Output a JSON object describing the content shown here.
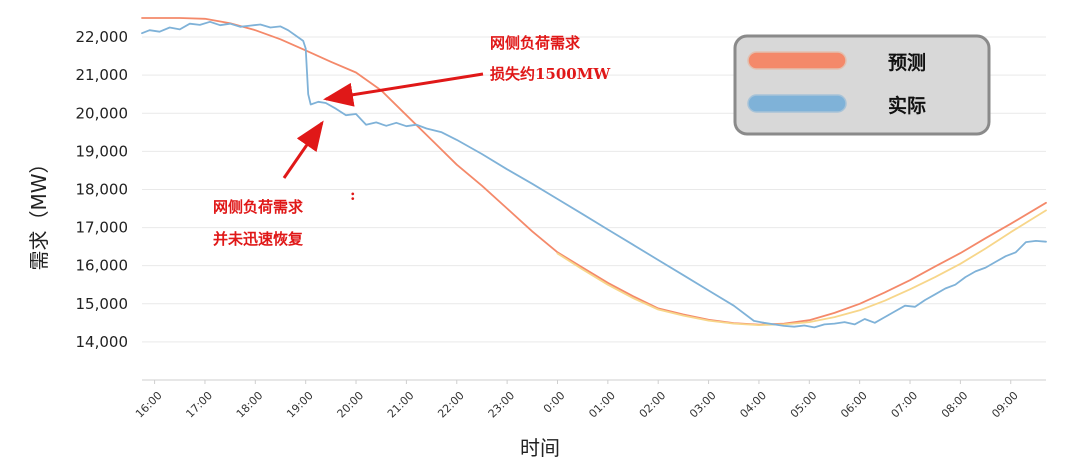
{
  "chart_data": {
    "type": "line",
    "title": "",
    "xlabel": "时间",
    "ylabel": "需求（MW）",
    "x_ticks": [
      "16:00",
      "17:00",
      "18:00",
      "19:00",
      "20:00",
      "21:00",
      "22:00",
      "23:00",
      "0:00",
      "01:00",
      "02:00",
      "03:00",
      "04:00",
      "05:00",
      "06:00",
      "07:00",
      "08:00",
      "09:00"
    ],
    "y_ticks": [
      14000,
      15000,
      16000,
      17000,
      18000,
      19000,
      20000,
      21000,
      22000
    ],
    "y_tick_labels": [
      "14,000",
      "15,000",
      "16,000",
      "17,000",
      "18,000",
      "19,000",
      "20,000",
      "21,000",
      "22,000"
    ],
    "ylim": [
      13000,
      22500
    ],
    "x_range_hours": [
      15.75,
      33.7
    ],
    "grid": true,
    "legend_position": "top-right",
    "series": [
      {
        "name": "预测",
        "color": "#f4896a",
        "points": [
          [
            15.75,
            22500
          ],
          [
            16.5,
            22500
          ],
          [
            17.0,
            22480
          ],
          [
            17.5,
            22360
          ],
          [
            18.0,
            22180
          ],
          [
            18.5,
            21940
          ],
          [
            19.0,
            21650
          ],
          [
            19.5,
            21350
          ],
          [
            20.0,
            21070
          ],
          [
            20.5,
            20600
          ],
          [
            21.0,
            19950
          ],
          [
            21.5,
            19300
          ],
          [
            22.0,
            18650
          ],
          [
            22.5,
            18100
          ],
          [
            23.0,
            17500
          ],
          [
            23.5,
            16900
          ],
          [
            24.0,
            16350
          ],
          [
            24.5,
            15950
          ],
          [
            25.0,
            15550
          ],
          [
            25.5,
            15200
          ],
          [
            26.0,
            14880
          ],
          [
            26.5,
            14720
          ],
          [
            27.0,
            14580
          ],
          [
            27.5,
            14490
          ],
          [
            28.0,
            14450
          ],
          [
            28.5,
            14480
          ],
          [
            29.0,
            14570
          ],
          [
            29.5,
            14760
          ],
          [
            30.0,
            15000
          ],
          [
            30.5,
            15300
          ],
          [
            31.0,
            15620
          ],
          [
            31.5,
            15980
          ],
          [
            32.0,
            16330
          ],
          [
            32.5,
            16720
          ],
          [
            33.0,
            17100
          ],
          [
            33.7,
            17650
          ]
        ]
      },
      {
        "name": "",
        "color": "#f7d68a",
        "points": [
          [
            24.0,
            16320
          ],
          [
            24.5,
            15900
          ],
          [
            25.0,
            15500
          ],
          [
            25.5,
            15150
          ],
          [
            26.0,
            14850
          ],
          [
            26.5,
            14690
          ],
          [
            27.0,
            14560
          ],
          [
            27.5,
            14480
          ],
          [
            28.0,
            14440
          ],
          [
            28.5,
            14460
          ],
          [
            29.0,
            14520
          ],
          [
            29.5,
            14650
          ],
          [
            30.0,
            14830
          ],
          [
            30.5,
            15080
          ],
          [
            31.0,
            15380
          ],
          [
            31.5,
            15700
          ],
          [
            32.0,
            16050
          ],
          [
            32.5,
            16450
          ],
          [
            33.0,
            16880
          ],
          [
            33.7,
            17450
          ]
        ]
      },
      {
        "name": "实际",
        "color": "#7fb2d8",
        "points": [
          [
            15.75,
            22100
          ],
          [
            15.9,
            22180
          ],
          [
            16.1,
            22140
          ],
          [
            16.3,
            22250
          ],
          [
            16.5,
            22200
          ],
          [
            16.7,
            22350
          ],
          [
            16.9,
            22320
          ],
          [
            17.1,
            22400
          ],
          [
            17.3,
            22310
          ],
          [
            17.5,
            22350
          ],
          [
            17.7,
            22270
          ],
          [
            17.9,
            22300
          ],
          [
            18.1,
            22330
          ],
          [
            18.3,
            22250
          ],
          [
            18.5,
            22280
          ],
          [
            18.65,
            22180
          ],
          [
            18.8,
            22040
          ],
          [
            18.95,
            21900
          ],
          [
            19.0,
            21700
          ],
          [
            19.05,
            20500
          ],
          [
            19.1,
            20230
          ],
          [
            19.25,
            20300
          ],
          [
            19.4,
            20270
          ],
          [
            19.6,
            20120
          ],
          [
            19.8,
            19950
          ],
          [
            20.0,
            19980
          ],
          [
            20.2,
            19700
          ],
          [
            20.4,
            19760
          ],
          [
            20.6,
            19670
          ],
          [
            20.8,
            19750
          ],
          [
            21.0,
            19660
          ],
          [
            21.2,
            19700
          ],
          [
            21.4,
            19600
          ],
          [
            21.7,
            19500
          ],
          [
            22.0,
            19300
          ],
          [
            22.5,
            18930
          ],
          [
            23.0,
            18530
          ],
          [
            23.5,
            18150
          ],
          [
            24.0,
            17750
          ],
          [
            24.5,
            17350
          ],
          [
            25.0,
            16950
          ],
          [
            25.5,
            16550
          ],
          [
            26.0,
            16150
          ],
          [
            26.5,
            15750
          ],
          [
            27.0,
            15350
          ],
          [
            27.5,
            14950
          ],
          [
            27.9,
            14550
          ],
          [
            28.1,
            14500
          ],
          [
            28.3,
            14460
          ],
          [
            28.5,
            14420
          ],
          [
            28.7,
            14400
          ],
          [
            28.9,
            14430
          ],
          [
            29.1,
            14380
          ],
          [
            29.3,
            14460
          ],
          [
            29.5,
            14480
          ],
          [
            29.7,
            14520
          ],
          [
            29.9,
            14460
          ],
          [
            30.1,
            14600
          ],
          [
            30.3,
            14500
          ],
          [
            30.5,
            14650
          ],
          [
            30.7,
            14800
          ],
          [
            30.9,
            14950
          ],
          [
            31.1,
            14920
          ],
          [
            31.3,
            15100
          ],
          [
            31.5,
            15250
          ],
          [
            31.7,
            15400
          ],
          [
            31.9,
            15500
          ],
          [
            32.1,
            15700
          ],
          [
            32.3,
            15850
          ],
          [
            32.5,
            15950
          ],
          [
            32.7,
            16100
          ],
          [
            32.9,
            16250
          ],
          [
            33.1,
            16350
          ],
          [
            33.3,
            16620
          ],
          [
            33.5,
            16650
          ],
          [
            33.7,
            16630
          ]
        ]
      }
    ],
    "annotations": [
      {
        "name": "drop",
        "lines": [
          "网侧负荷需求",
          "损失约1500MW"
        ],
        "arrow_to": [
          19.2,
          21400
        ]
      },
      {
        "name": "no-recovery",
        "lines": [
          "网侧负荷需求",
          "并未迅速恢复"
        ],
        "arrow_to": [
          19.3,
          20030
        ]
      }
    ],
    "stray_marks": [
      ":"
    ]
  },
  "legend": {
    "items": [
      {
        "label": "预测",
        "color": "#f4896a"
      },
      {
        "label": "实际",
        "color": "#7fb2d8"
      }
    ]
  }
}
